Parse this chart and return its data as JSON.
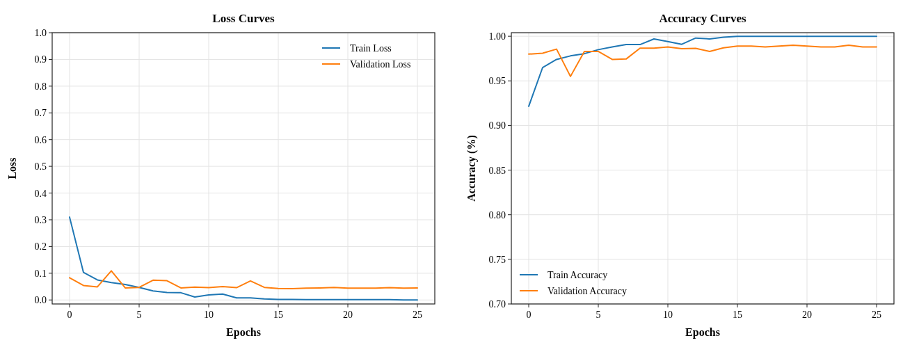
{
  "chart_data": [
    {
      "type": "line",
      "title": "Loss Curves",
      "xlabel": "Epochs",
      "ylabel": "Loss",
      "x": [
        0,
        1,
        2,
        3,
        4,
        5,
        6,
        7,
        8,
        9,
        10,
        11,
        12,
        13,
        14,
        15,
        16,
        17,
        18,
        19,
        20,
        21,
        22,
        23,
        24,
        25
      ],
      "xlim": [
        -1.25,
        26.25
      ],
      "xticks": [
        0,
        5,
        10,
        15,
        20,
        25
      ],
      "ylim": [
        -0.015,
        1.0
      ],
      "yticks": [
        {
          "value": 0,
          "label": "0.0"
        },
        0.1,
        0.2,
        0.3,
        0.4,
        0.5,
        0.6,
        0.7,
        0.8,
        0.9,
        {
          "value": 1,
          "label": "1.0"
        }
      ],
      "grid": true,
      "legend": "top right",
      "line_style": "solid",
      "marker": "none",
      "series": [
        {
          "name": "Train Loss",
          "color": "#1f77b4",
          "values": [
            0.31,
            0.103,
            0.075,
            0.065,
            0.058,
            0.047,
            0.034,
            0.028,
            0.027,
            0.011,
            0.019,
            0.022,
            0.008,
            0.008,
            0.004,
            0.002,
            0.002,
            0.001,
            0.001,
            0.001,
            0.001,
            0.001,
            0.001,
            0.001,
            0.0,
            0.0
          ]
        },
        {
          "name": "Validation Loss",
          "color": "#ff7f0e",
          "values": [
            0.083,
            0.054,
            0.049,
            0.109,
            0.045,
            0.047,
            0.074,
            0.072,
            0.045,
            0.048,
            0.046,
            0.05,
            0.046,
            0.071,
            0.047,
            0.043,
            0.042,
            0.044,
            0.045,
            0.047,
            0.044,
            0.044,
            0.044,
            0.046,
            0.044,
            0.045
          ]
        }
      ]
    },
    {
      "type": "line",
      "title": "Accuracy Curves",
      "xlabel": "Epochs",
      "ylabel": "Accuracy (%)",
      "x": [
        0,
        1,
        2,
        3,
        4,
        5,
        6,
        7,
        8,
        9,
        10,
        11,
        12,
        13,
        14,
        15,
        16,
        17,
        18,
        19,
        20,
        21,
        22,
        23,
        24,
        25
      ],
      "xlim": [
        -1.25,
        26.25
      ],
      "xticks": [
        0,
        5,
        10,
        15,
        20,
        25
      ],
      "ylim": [
        0.7,
        1.004
      ],
      "yticks": [
        {
          "value": 0.7,
          "label": "0.70"
        },
        {
          "value": 0.75,
          "label": "0.75"
        },
        {
          "value": 0.8,
          "label": "0.80"
        },
        {
          "value": 0.85,
          "label": "0.85"
        },
        {
          "value": 0.9,
          "label": "0.90"
        },
        {
          "value": 0.95,
          "label": "0.95"
        },
        {
          "value": 1,
          "label": "1.00"
        }
      ],
      "grid": true,
      "legend": "bottom left",
      "line_style": "solid",
      "marker": "none",
      "series": [
        {
          "name": "Train Accuracy",
          "color": "#1f77b4",
          "values": [
            0.9215,
            0.965,
            0.974,
            0.978,
            0.9805,
            0.985,
            0.988,
            0.9907,
            0.9907,
            0.997,
            0.994,
            0.991,
            0.998,
            0.997,
            0.999,
            1.0,
            1.0,
            1.0,
            1.0,
            1.0,
            1.0,
            1.0,
            1.0,
            1.0,
            1.0,
            1.0
          ]
        },
        {
          "name": "Validation Accuracy",
          "color": "#ff7f0e",
          "values": [
            0.98,
            0.981,
            0.9856,
            0.955,
            0.983,
            0.983,
            0.974,
            0.9745,
            0.9866,
            0.9866,
            0.988,
            0.986,
            0.9865,
            0.983,
            0.987,
            0.989,
            0.989,
            0.988,
            0.989,
            0.99,
            0.989,
            0.988,
            0.988,
            0.99,
            0.988,
            0.988
          ]
        }
      ]
    }
  ]
}
